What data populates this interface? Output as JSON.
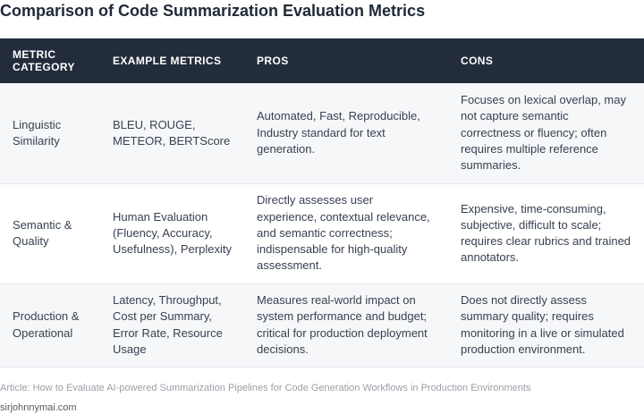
{
  "title": "Comparison of Code Summarization Evaluation Metrics",
  "table": {
    "headers": [
      "METRIC CATEGORY",
      "EXAMPLE METRICS",
      "PROS",
      "CONS"
    ],
    "rows": [
      {
        "category": "Linguistic Similarity",
        "examples": "BLEU, ROUGE, METEOR, BERTScore",
        "pros": "Automated, Fast, Reproducible, Industry standard for text generation.",
        "cons": "Focuses on lexical overlap, may not capture semantic correctness or fluency; often requires multiple reference summaries."
      },
      {
        "category": "Semantic & Quality",
        "examples": "Human Evaluation (Fluency, Accuracy, Usefulness), Perplexity",
        "pros": "Directly assesses user experience, contextual relevance, and semantic correctness; indispensable for high-quality assessment.",
        "cons": "Expensive, time-consuming, subjective, difficult to scale; requires clear rubrics and trained annotators."
      },
      {
        "category": "Production & Operational",
        "examples": "Latency, Throughput, Cost per Summary, Error Rate, Resource Usage",
        "pros": "Measures real-world impact on system performance and budget; critical for production deployment decisions.",
        "cons": "Does not directly assess summary quality; requires monitoring in a live or simulated production environment."
      }
    ]
  },
  "footer": {
    "article": "Article: How to Evaluate AI-powered Summarization Pipelines for Code Generation Workflows in Production Environments",
    "site": "sirjohnnymai.com"
  }
}
